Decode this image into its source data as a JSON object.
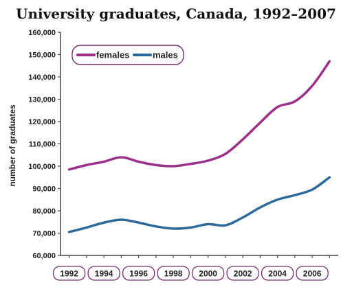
{
  "chart_data": {
    "type": "line",
    "title": "University graduates, Canada, 1992–2007",
    "xlabel": "",
    "ylabel": "number of graduates",
    "ylim": [
      60000,
      160000
    ],
    "yticks": [
      60000,
      70000,
      80000,
      90000,
      100000,
      110000,
      120000,
      130000,
      140000,
      150000,
      160000
    ],
    "ytick_labels": [
      "60,000",
      "70,000",
      "80,000",
      "90,000",
      "100,000",
      "110,000",
      "120,000",
      "130,000",
      "140,000",
      "150,000",
      "160,000"
    ],
    "xlim": [
      1991.5,
      2007.5
    ],
    "xticks": [
      1992,
      1994,
      1996,
      1998,
      2000,
      2002,
      2004,
      2006
    ],
    "xtick_labels": [
      "1992",
      "1994",
      "1996",
      "1998",
      "2000",
      "2002",
      "2004",
      "2006"
    ],
    "x": [
      1992,
      1993,
      1994,
      1995,
      1996,
      1997,
      1998,
      1999,
      2000,
      2001,
      2002,
      2003,
      2004,
      2005,
      2006,
      2007
    ],
    "series": [
      {
        "name": "females",
        "color": "#9b2f8a",
        "values": [
          98500,
          100500,
          102000,
          104000,
          102000,
          100500,
          100000,
          101000,
          102500,
          105500,
          112000,
          119500,
          126500,
          129000,
          136000,
          147000
        ]
      },
      {
        "name": "males",
        "color": "#2b6a9a",
        "values": [
          70500,
          72500,
          74700,
          76000,
          74700,
          73000,
          72000,
          72500,
          74000,
          73500,
          77000,
          81500,
          85000,
          87000,
          89500,
          95000
        ]
      }
    ],
    "grid": false,
    "legend": "top-left",
    "frame_color": "#7a2d72",
    "axis_color": "#444444"
  }
}
